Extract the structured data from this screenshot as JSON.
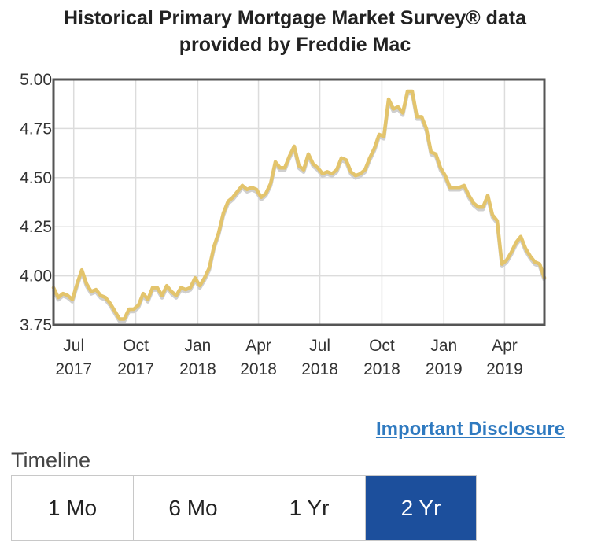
{
  "page": {
    "title_line1": "Historical Primary Mortgage Market Survey® data",
    "title_line2": "provided by Freddie Mac",
    "disclosure_link": "Important Disclosure",
    "timeline_label": "Timeline",
    "timeline_options": [
      "1 Mo",
      "6 Mo",
      "1 Yr",
      "2 Yr"
    ],
    "timeline_selected": "2 Yr",
    "line_color": "#e3c46c",
    "accent_color": "#1c4f9c",
    "link_color": "#2f7ac0"
  },
  "chart_data": {
    "type": "line",
    "title": "",
    "xlabel": "",
    "ylabel": "",
    "ylim": [
      3.75,
      5.0
    ],
    "yticks": [
      "3.75",
      "4.00",
      "4.25",
      "4.50",
      "4.75",
      "5.00"
    ],
    "grid": true,
    "xticks": [
      {
        "month": "Jul",
        "year": "2017"
      },
      {
        "month": "Oct",
        "year": "2017"
      },
      {
        "month": "Jan",
        "year": "2018"
      },
      {
        "month": "Apr",
        "year": "2018"
      },
      {
        "month": "Jul",
        "year": "2018"
      },
      {
        "month": "Oct",
        "year": "2018"
      },
      {
        "month": "Jan",
        "year": "2019"
      },
      {
        "month": "Apr",
        "year": "2019"
      }
    ],
    "x_start": "2017-06-01",
    "x_end": "2019-05-30",
    "series": [
      {
        "values": [
          [
            "2017-06-01",
            3.94
          ],
          [
            "2017-06-08",
            3.89
          ],
          [
            "2017-06-15",
            3.91
          ],
          [
            "2017-06-22",
            3.9
          ],
          [
            "2017-06-29",
            3.88
          ],
          [
            "2017-07-06",
            3.96
          ],
          [
            "2017-07-13",
            4.03
          ],
          [
            "2017-07-20",
            3.96
          ],
          [
            "2017-07-27",
            3.92
          ],
          [
            "2017-08-03",
            3.93
          ],
          [
            "2017-08-10",
            3.9
          ],
          [
            "2017-08-17",
            3.89
          ],
          [
            "2017-08-24",
            3.86
          ],
          [
            "2017-08-31",
            3.82
          ],
          [
            "2017-09-07",
            3.78
          ],
          [
            "2017-09-14",
            3.78
          ],
          [
            "2017-09-21",
            3.83
          ],
          [
            "2017-09-28",
            3.83
          ],
          [
            "2017-10-05",
            3.85
          ],
          [
            "2017-10-12",
            3.91
          ],
          [
            "2017-10-19",
            3.88
          ],
          [
            "2017-10-26",
            3.94
          ],
          [
            "2017-11-02",
            3.94
          ],
          [
            "2017-11-09",
            3.9
          ],
          [
            "2017-11-16",
            3.95
          ],
          [
            "2017-11-23",
            3.92
          ],
          [
            "2017-11-30",
            3.9
          ],
          [
            "2017-12-07",
            3.94
          ],
          [
            "2017-12-14",
            3.93
          ],
          [
            "2017-12-21",
            3.94
          ],
          [
            "2017-12-28",
            3.99
          ],
          [
            "2018-01-04",
            3.95
          ],
          [
            "2018-01-11",
            3.99
          ],
          [
            "2018-01-18",
            4.04
          ],
          [
            "2018-01-25",
            4.15
          ],
          [
            "2018-02-01",
            4.22
          ],
          [
            "2018-02-08",
            4.32
          ],
          [
            "2018-02-15",
            4.38
          ],
          [
            "2018-02-22",
            4.4
          ],
          [
            "2018-03-01",
            4.43
          ],
          [
            "2018-03-08",
            4.46
          ],
          [
            "2018-03-15",
            4.44
          ],
          [
            "2018-03-22",
            4.45
          ],
          [
            "2018-03-29",
            4.44
          ],
          [
            "2018-04-05",
            4.4
          ],
          [
            "2018-04-12",
            4.42
          ],
          [
            "2018-04-19",
            4.47
          ],
          [
            "2018-04-26",
            4.58
          ],
          [
            "2018-05-03",
            4.55
          ],
          [
            "2018-05-10",
            4.55
          ],
          [
            "2018-05-17",
            4.61
          ],
          [
            "2018-05-24",
            4.66
          ],
          [
            "2018-05-31",
            4.56
          ],
          [
            "2018-06-07",
            4.54
          ],
          [
            "2018-06-14",
            4.62
          ],
          [
            "2018-06-21",
            4.57
          ],
          [
            "2018-06-28",
            4.55
          ],
          [
            "2018-07-05",
            4.52
          ],
          [
            "2018-07-12",
            4.53
          ],
          [
            "2018-07-19",
            4.52
          ],
          [
            "2018-07-26",
            4.54
          ],
          [
            "2018-08-02",
            4.6
          ],
          [
            "2018-08-09",
            4.59
          ],
          [
            "2018-08-16",
            4.53
          ],
          [
            "2018-08-23",
            4.51
          ],
          [
            "2018-08-30",
            4.52
          ],
          [
            "2018-09-06",
            4.54
          ],
          [
            "2018-09-13",
            4.6
          ],
          [
            "2018-09-20",
            4.65
          ],
          [
            "2018-09-27",
            4.72
          ],
          [
            "2018-10-04",
            4.71
          ],
          [
            "2018-10-11",
            4.9
          ],
          [
            "2018-10-18",
            4.85
          ],
          [
            "2018-10-25",
            4.86
          ],
          [
            "2018-11-01",
            4.83
          ],
          [
            "2018-11-08",
            4.94
          ],
          [
            "2018-11-15",
            4.94
          ],
          [
            "2018-11-22",
            4.81
          ],
          [
            "2018-11-29",
            4.81
          ],
          [
            "2018-12-06",
            4.75
          ],
          [
            "2018-12-13",
            4.63
          ],
          [
            "2018-12-20",
            4.62
          ],
          [
            "2018-12-27",
            4.55
          ],
          [
            "2019-01-03",
            4.51
          ],
          [
            "2019-01-10",
            4.45
          ],
          [
            "2019-01-17",
            4.45
          ],
          [
            "2019-01-24",
            4.45
          ],
          [
            "2019-01-31",
            4.46
          ],
          [
            "2019-02-07",
            4.41
          ],
          [
            "2019-02-14",
            4.37
          ],
          [
            "2019-02-21",
            4.35
          ],
          [
            "2019-02-28",
            4.35
          ],
          [
            "2019-03-07",
            4.41
          ],
          [
            "2019-03-14",
            4.31
          ],
          [
            "2019-03-21",
            4.28
          ],
          [
            "2019-03-28",
            4.06
          ],
          [
            "2019-04-04",
            4.08
          ],
          [
            "2019-04-11",
            4.12
          ],
          [
            "2019-04-18",
            4.17
          ],
          [
            "2019-04-25",
            4.2
          ],
          [
            "2019-05-02",
            4.14
          ],
          [
            "2019-05-09",
            4.1
          ],
          [
            "2019-05-16",
            4.07
          ],
          [
            "2019-05-23",
            4.06
          ],
          [
            "2019-05-30",
            3.99
          ]
        ]
      }
    ]
  }
}
